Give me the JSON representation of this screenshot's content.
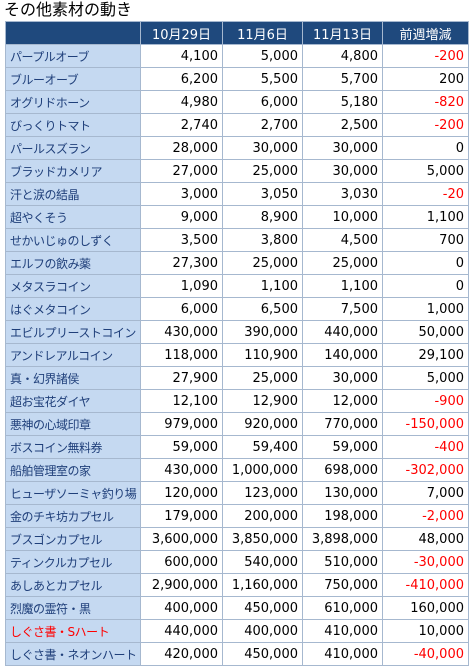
{
  "title": "その他素材の動き",
  "table": {
    "header": [
      "10月29日",
      "11月6日",
      "11月13日",
      "前週増減"
    ],
    "header_color": "#1f497d",
    "name_color": "#1f3f7a",
    "name_background": "#c5d9f1",
    "negative_color": "#ff0000",
    "rows": [
      {
        "name": "パープルオーブ",
        "values": [
          "4,100",
          "5,000",
          "4,800",
          "-200"
        ]
      },
      {
        "name": "ブルーオーブ",
        "values": [
          "6,200",
          "5,500",
          "5,700",
          "200"
        ]
      },
      {
        "name": "オグリドホーン",
        "values": [
          "4,980",
          "6,000",
          "5,180",
          "-820"
        ]
      },
      {
        "name": "びっくりトマト",
        "values": [
          "2,740",
          "2,700",
          "2,500",
          "-200"
        ]
      },
      {
        "name": "パールスズラン",
        "values": [
          "28,000",
          "30,000",
          "30,000",
          "0"
        ]
      },
      {
        "name": "ブラッドカメリア",
        "values": [
          "27,000",
          "25,000",
          "30,000",
          "5,000"
        ]
      },
      {
        "name": "汗と涙の結晶",
        "values": [
          "3,000",
          "3,050",
          "3,030",
          "-20"
        ]
      },
      {
        "name": "超やくそう",
        "values": [
          "9,000",
          "8,900",
          "10,000",
          "1,100"
        ]
      },
      {
        "name": "せかいじゅのしずく",
        "values": [
          "3,500",
          "3,800",
          "4,500",
          "700"
        ]
      },
      {
        "name": "エルフの飲み薬",
        "values": [
          "27,300",
          "25,000",
          "25,000",
          "0"
        ]
      },
      {
        "name": "メタスラコイン",
        "values": [
          "1,090",
          "1,100",
          "1,100",
          "0"
        ]
      },
      {
        "name": "はぐメタコイン",
        "values": [
          "6,000",
          "6,500",
          "7,500",
          "1,000"
        ]
      },
      {
        "name": "エビルプリーストコイン",
        "values": [
          "430,000",
          "390,000",
          "440,000",
          "50,000"
        ]
      },
      {
        "name": "アンドレアルコイン",
        "values": [
          "118,000",
          "110,900",
          "140,000",
          "29,100"
        ]
      },
      {
        "name": "真・幻界諸侯",
        "values": [
          "27,900",
          "25,000",
          "30,000",
          "5,000"
        ]
      },
      {
        "name": "超お宝花ダイヤ",
        "values": [
          "12,100",
          "12,900",
          "12,000",
          "-900"
        ]
      },
      {
        "name": "悪神の心域印章",
        "values": [
          "979,000",
          "920,000",
          "770,000",
          "-150,000"
        ]
      },
      {
        "name": "ボスコイン無料券",
        "values": [
          "59,000",
          "59,400",
          "59,000",
          "-400"
        ]
      },
      {
        "name": "船舶管理室の家",
        "values": [
          "430,000",
          "1,000,000",
          "698,000",
          "-302,000"
        ]
      },
      {
        "name": "ヒューザソーミャ釣り場",
        "values": [
          "120,000",
          "123,000",
          "130,000",
          "7,000"
        ]
      },
      {
        "name": "金のチキ坊カプセル",
        "values": [
          "179,000",
          "200,000",
          "198,000",
          "-2,000"
        ]
      },
      {
        "name": "ブスゴンカプセル",
        "values": [
          "3,600,000",
          "3,850,000",
          "3,898,000",
          "48,000"
        ]
      },
      {
        "name": "ティンクルカプセル",
        "values": [
          "600,000",
          "540,000",
          "510,000",
          "-30,000"
        ]
      },
      {
        "name": "あしあとカプセル",
        "values": [
          "2,900,000",
          "1,160,000",
          "750,000",
          "-410,000"
        ]
      },
      {
        "name": "烈魔の霊符・黒",
        "values": [
          "400,000",
          "450,000",
          "610,000",
          "160,000"
        ]
      },
      {
        "name": "しぐさ書・Sハート",
        "values": [
          "440,000",
          "400,000",
          "410,000",
          "10,000"
        ],
        "name_color": "#ff0000"
      },
      {
        "name": "しぐさ書・ネオンハート",
        "values": [
          "420,000",
          "450,000",
          "410,000",
          "-40,000"
        ]
      }
    ]
  }
}
